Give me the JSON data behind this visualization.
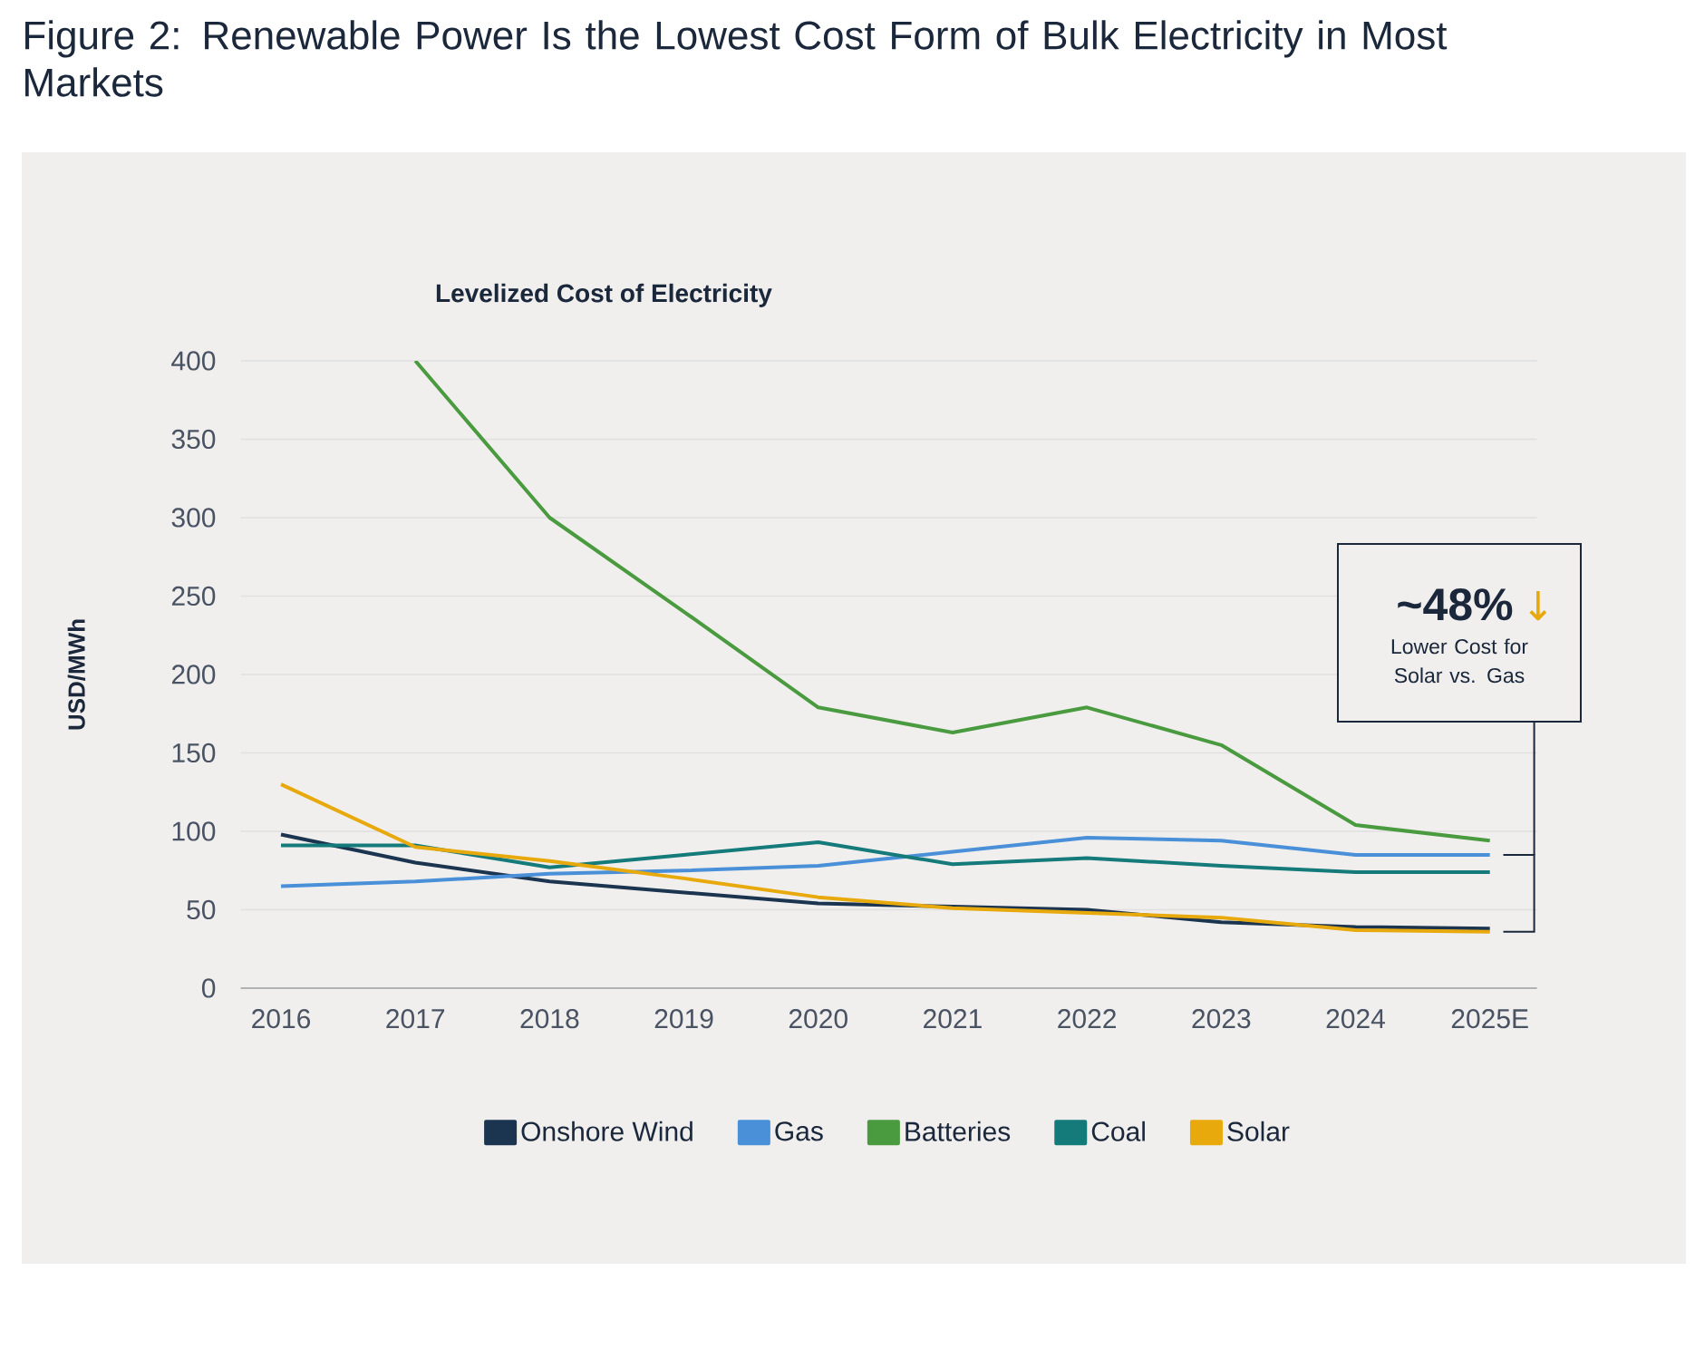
{
  "chart_data": {
    "type": "line",
    "title": "Figure 2: Renewable Power Is the Lowest Cost Form of Bulk Electricity in Most Markets",
    "subtitle": "Levelized Cost of Electricity",
    "ylabel": "USD/MWh",
    "categories": [
      "2016",
      "2017",
      "2018",
      "2019",
      "2020",
      "2021",
      "2022",
      "2023",
      "2024",
      "2025E"
    ],
    "series": [
      {
        "name": "Onshore Wind",
        "color": "#1b3550",
        "values": [
          98,
          80,
          68,
          61,
          54,
          52,
          50,
          42,
          39,
          38
        ]
      },
      {
        "name": "Gas",
        "color": "#4a90d9",
        "values": [
          65,
          68,
          73,
          75,
          78,
          87,
          96,
          94,
          85,
          85
        ]
      },
      {
        "name": "Batteries",
        "color": "#4a9a3f",
        "values": [
          null,
          400,
          300,
          240,
          179,
          163,
          179,
          155,
          104,
          94
        ]
      },
      {
        "name": "Coal",
        "color": "#157a7a",
        "values": [
          91,
          91,
          77,
          85,
          93,
          79,
          83,
          78,
          74,
          74
        ]
      },
      {
        "name": "Solar",
        "color": "#e8a90c",
        "values": [
          130,
          90,
          81,
          70,
          58,
          51,
          48,
          45,
          37,
          36
        ]
      }
    ],
    "ylim": [
      0,
      400
    ],
    "yticks": [
      0,
      50,
      100,
      150,
      200,
      250,
      300,
      350,
      400
    ],
    "grid": "y",
    "legend": "bottom",
    "marker": "none",
    "line_style": "solid",
    "annotations": [
      "~48%",
      "↓",
      "Lower Cost for Solar vs. Gas"
    ]
  }
}
